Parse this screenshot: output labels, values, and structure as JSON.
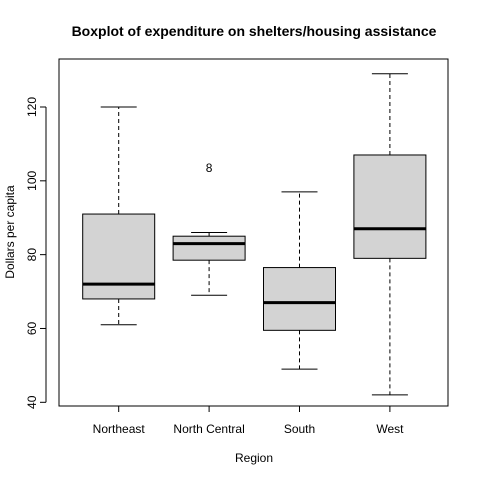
{
  "chart_data": {
    "type": "boxplot",
    "title": "Boxplot of expenditure on shelters/housing assistance",
    "xlabel": "Region",
    "ylabel": "Dollars per capita",
    "ylim": [
      39,
      133
    ],
    "yticks": [
      40,
      60,
      80,
      100,
      120
    ],
    "ytick_labels": [
      "40",
      "60",
      "80",
      "100",
      "120"
    ],
    "box_fill": "#d3d3d3",
    "grid": false,
    "legend": "none",
    "categories": [
      "Northeast",
      "North Central",
      "South",
      "West"
    ],
    "boxes": [
      {
        "category": "Northeast",
        "whisker_low": 61,
        "q1": 68,
        "median": 72,
        "q3": 91,
        "whisker_high": 120,
        "outliers": []
      },
      {
        "category": "North Central",
        "whisker_low": 69,
        "q1": 78.5,
        "median": 83,
        "q3": 85,
        "whisker_high": 86,
        "outliers": [
          {
            "value": 103.5,
            "label": "8"
          }
        ]
      },
      {
        "category": "South",
        "whisker_low": 49,
        "q1": 59.5,
        "median": 67,
        "q3": 76.5,
        "whisker_high": 97,
        "outliers": []
      },
      {
        "category": "West",
        "whisker_low": 42,
        "q1": 79,
        "median": 87,
        "q3": 107,
        "whisker_high": 129,
        "outliers": []
      }
    ]
  }
}
